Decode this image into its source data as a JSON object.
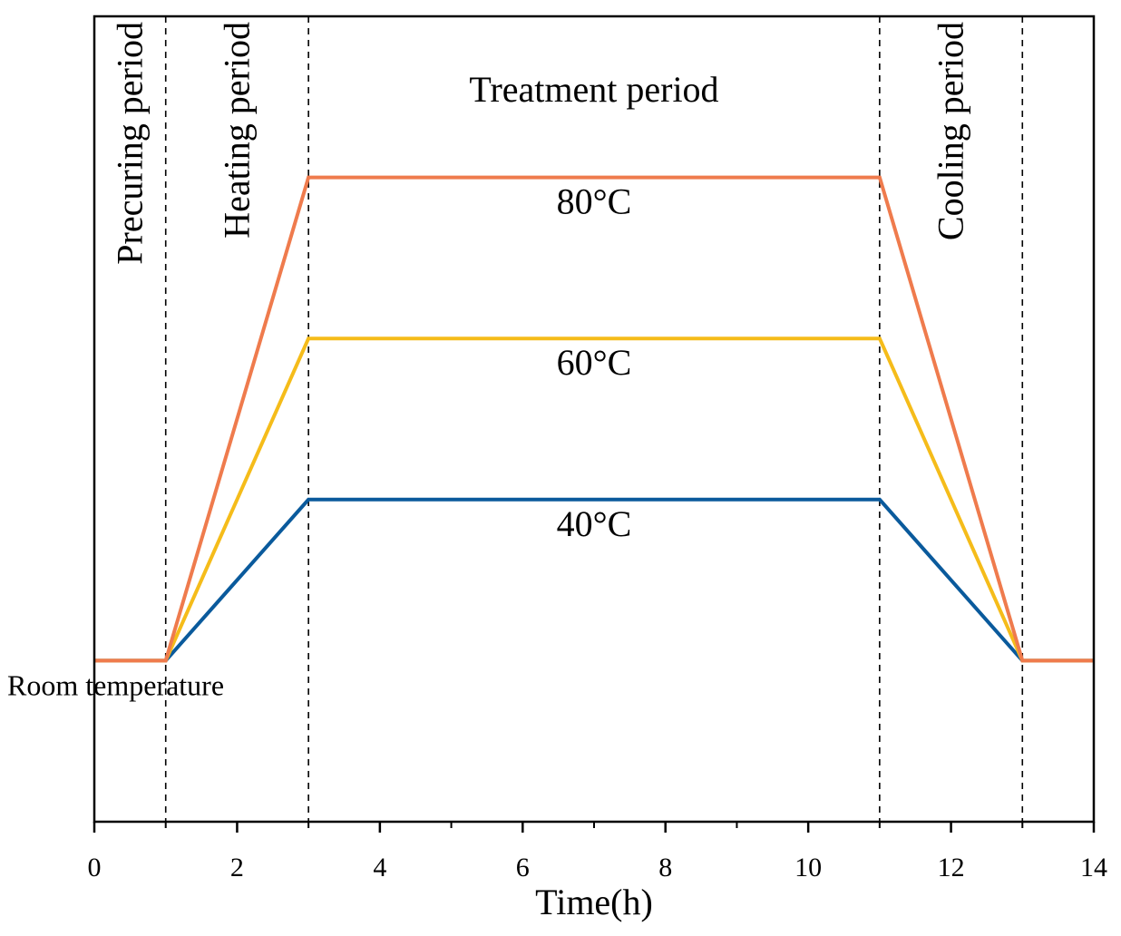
{
  "chart_data": {
    "type": "line",
    "title": "",
    "xlabel": "Time(h)",
    "ylabel": "",
    "xlim": [
      0,
      14
    ],
    "ylim": [
      0,
      100
    ],
    "x_ticks": [
      0,
      2,
      4,
      6,
      8,
      10,
      12,
      14
    ],
    "x_minor_ticks": [
      1,
      3,
      5,
      7,
      9,
      11,
      13
    ],
    "grid": false,
    "series": [
      {
        "name": "40°C",
        "color": "#0a5a9c",
        "x": [
          0,
          1,
          3,
          11,
          13,
          14
        ],
        "y": [
          20,
          20,
          40,
          40,
          20,
          20
        ]
      },
      {
        "name": "60°C",
        "color": "#f5bc1a",
        "x": [
          0,
          1,
          3,
          11,
          13,
          14
        ],
        "y": [
          20,
          20,
          60,
          60,
          20,
          20
        ]
      },
      {
        "name": "80°C",
        "color": "#ef7b4d",
        "x": [
          0,
          1,
          3,
          11,
          13,
          14
        ],
        "y": [
          20,
          20,
          80,
          80,
          20,
          20
        ]
      }
    ],
    "phase_boundaries": [
      1,
      3,
      11,
      13
    ],
    "phases": [
      {
        "label": "Precuring period",
        "orientation": "vertical",
        "x_center": 0.5
      },
      {
        "label": "Heating period",
        "orientation": "vertical",
        "x_center": 2
      },
      {
        "label": "Treatment period",
        "orientation": "horizontal",
        "x_center": 7
      },
      {
        "label": "Cooling period",
        "orientation": "vertical",
        "x_center": 12
      }
    ],
    "annotations": {
      "room_temperature": "Room temperature"
    }
  }
}
